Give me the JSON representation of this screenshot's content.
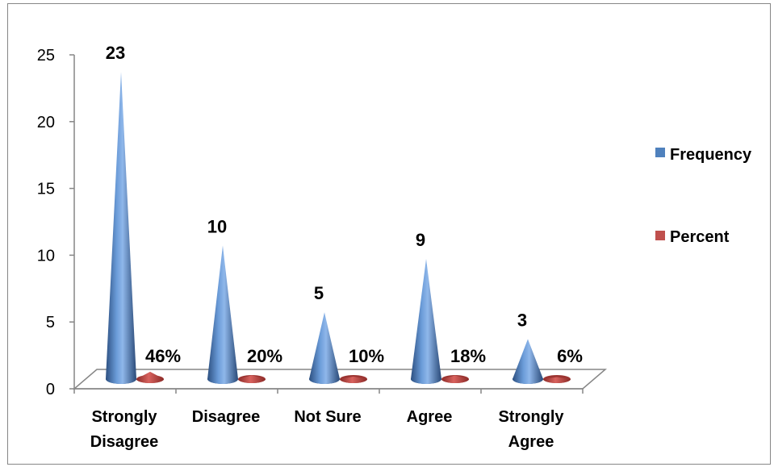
{
  "chart_data": {
    "type": "bar",
    "style": "3d-cone",
    "title": "",
    "xlabel": "",
    "ylabel": "",
    "categories": [
      [
        "Strongly",
        "Disagree"
      ],
      [
        "Disagree"
      ],
      [
        "Not Sure"
      ],
      [
        "Agree"
      ],
      [
        "Strongly",
        "Agree"
      ]
    ],
    "ylim": [
      0,
      25
    ],
    "yticks": [
      "0",
      "5",
      "10",
      "15",
      "20",
      "25"
    ],
    "series": [
      {
        "name": "Frequency",
        "color": "#4F81BD",
        "values": [
          23,
          10,
          5,
          9,
          3
        ],
        "labels": [
          "23",
          "10",
          "5",
          "9",
          "3"
        ]
      },
      {
        "name": "Percent",
        "color": "#C0504D",
        "values": [
          0.46,
          0.2,
          0.1,
          0.18,
          0.06
        ],
        "labels": [
          "46%",
          "20%",
          "10%",
          "18%",
          "6%"
        ]
      }
    ],
    "legend_position": "right",
    "grid": false
  }
}
